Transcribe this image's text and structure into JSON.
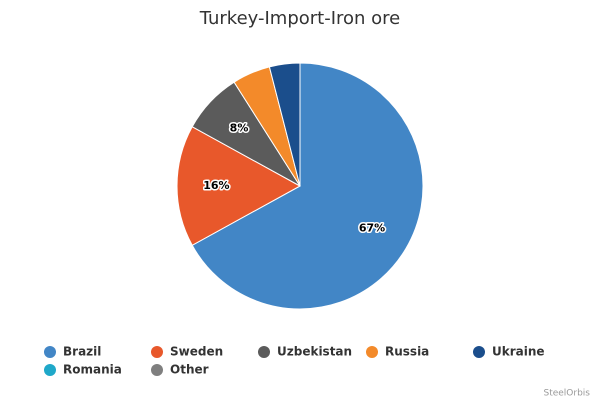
{
  "chart_data": {
    "type": "pie",
    "title": "Turkey-Import-Iron ore",
    "categories": [
      "Brazil",
      "Sweden",
      "Uzbekistan",
      "Russia",
      "Ukraine",
      "Romania",
      "Other"
    ],
    "values": [
      67,
      16,
      8,
      5,
      4,
      0,
      0
    ],
    "value_labels": [
      "67%",
      "16%",
      "8%",
      null,
      null,
      null,
      null
    ],
    "colors": [
      "#4286c6",
      "#e8582b",
      "#5b5b5b",
      "#f38a2a",
      "#1b4e8c",
      "#1fa8c9",
      "#7f7f7f"
    ],
    "credit": "SteelOrbis"
  }
}
